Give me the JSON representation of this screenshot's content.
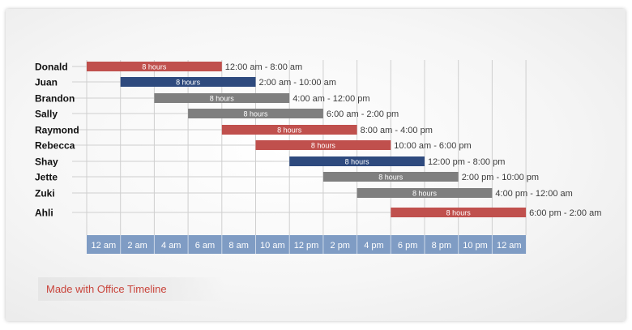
{
  "colors": {
    "red": "#c0504d",
    "blue": "#2e4a7e",
    "gray": "#7f7f7f",
    "axis_band": "#7f9cc4",
    "axis_text": "#ffffff",
    "label_text": "#3c3c3c",
    "grid": "#cfcfcf",
    "watermark_text": "#c9443b"
  },
  "watermark": "Made with Office Timeline",
  "chart_data": {
    "type": "gantt",
    "title": "",
    "x_unit": "hours",
    "xlim": [
      0,
      26
    ],
    "axis_ticks": [
      {
        "hour": 0,
        "label": "12 am"
      },
      {
        "hour": 2,
        "label": "2 am"
      },
      {
        "hour": 4,
        "label": "4 am"
      },
      {
        "hour": 6,
        "label": "6 am"
      },
      {
        "hour": 8,
        "label": "8 am"
      },
      {
        "hour": 10,
        "label": "10 am"
      },
      {
        "hour": 12,
        "label": "12 pm"
      },
      {
        "hour": 14,
        "label": "2 pm"
      },
      {
        "hour": 16,
        "label": "4 pm"
      },
      {
        "hour": 18,
        "label": "6 pm"
      },
      {
        "hour": 20,
        "label": "8 pm"
      },
      {
        "hour": 22,
        "label": "10 pm"
      },
      {
        "hour": 24,
        "label": "12 am"
      }
    ],
    "tasks": [
      {
        "name": "Donald",
        "start": 0,
        "end": 8,
        "duration_label": "8 hours",
        "range_label": "12:00 am - 8:00 am",
        "color": "red"
      },
      {
        "name": "Juan",
        "start": 2,
        "end": 10,
        "duration_label": "8 hours",
        "range_label": "2:00 am - 10:00 am",
        "color": "blue"
      },
      {
        "name": "Brandon",
        "start": 4,
        "end": 12,
        "duration_label": "8 hours",
        "range_label": "4:00 am - 12:00 pm",
        "color": "gray"
      },
      {
        "name": "Sally",
        "start": 6,
        "end": 14,
        "duration_label": "8 hours",
        "range_label": "6:00 am - 2:00 pm",
        "color": "gray"
      },
      {
        "name": "Raymond",
        "start": 8,
        "end": 16,
        "duration_label": "8 hours",
        "range_label": "8:00 am - 4:00 pm",
        "color": "red"
      },
      {
        "name": "Rebecca",
        "start": 10,
        "end": 18,
        "duration_label": "8 hours",
        "range_label": "10:00 am - 6:00 pm",
        "color": "red"
      },
      {
        "name": "Shay",
        "start": 12,
        "end": 20,
        "duration_label": "8 hours",
        "range_label": "12:00 pm - 8:00 pm",
        "color": "blue"
      },
      {
        "name": "Jette",
        "start": 14,
        "end": 22,
        "duration_label": "8 hours",
        "range_label": "2:00 pm - 10:00 pm",
        "color": "gray"
      },
      {
        "name": "Zuki",
        "start": 16,
        "end": 24,
        "duration_label": "8 hours",
        "range_label": "4:00 pm - 12:00 am",
        "color": "gray"
      },
      {
        "name": "Ahli",
        "start": 18,
        "end": 26,
        "duration_label": "8 hours",
        "range_label": "6:00 pm - 2:00 am",
        "color": "red"
      }
    ]
  }
}
